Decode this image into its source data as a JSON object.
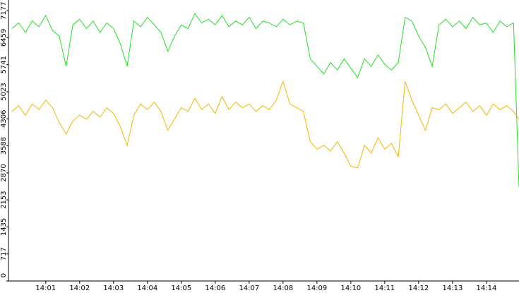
{
  "chart_data": {
    "type": "line",
    "x": [
      0,
      0.2,
      0.4,
      0.6,
      0.8,
      1,
      1.2,
      1.4,
      1.6,
      1.8,
      2,
      2.2,
      2.4,
      2.6,
      2.8,
      3,
      3.2,
      3.4,
      3.6,
      3.8,
      4,
      4.2,
      4.4,
      4.6,
      4.8,
      5,
      5.2,
      5.4,
      5.6,
      5.8,
      6,
      6.2,
      6.4,
      6.6,
      6.8,
      7,
      7.2,
      7.4,
      7.6,
      7.8,
      8,
      8.2,
      8.4,
      8.6,
      8.8,
      9,
      9.2,
      9.4,
      9.6,
      9.8,
      10,
      10.2,
      10.4,
      10.6,
      10.8,
      11,
      11.2,
      11.4,
      11.6,
      11.8,
      12,
      12.2,
      12.4,
      12.6,
      12.8,
      13,
      13.2,
      13.4,
      13.6,
      13.8,
      14,
      14.2,
      14.4,
      14.6,
      14.8,
      14.96
    ],
    "series": [
      {
        "color": "#22e022",
        "values": [
          6700,
          6850,
          6600,
          6900,
          6750,
          7050,
          6650,
          6500,
          5700,
          6800,
          6950,
          6700,
          6900,
          6600,
          6850,
          6700,
          6300,
          5700,
          6900,
          6750,
          7000,
          6800,
          6600,
          6100,
          6500,
          6800,
          6700,
          7100,
          6850,
          6950,
          6800,
          7050,
          6750,
          6900,
          6800,
          7000,
          6700,
          6900,
          6850,
          6750,
          6950,
          6800,
          6900,
          6850,
          5900,
          5700,
          5500,
          5800,
          5600,
          5900,
          5650,
          5400,
          5900,
          5700,
          6000,
          5750,
          5600,
          5800,
          7000,
          6900,
          6500,
          6200,
          5700,
          6800,
          6950,
          6750,
          6900,
          6700,
          7000,
          6800,
          6850,
          6600,
          6900,
          6750,
          6850,
          2500
        ]
      },
      {
        "color": "#f0b800",
        "values": [
          4500,
          4650,
          4400,
          4700,
          4550,
          4800,
          4600,
          4200,
          3900,
          4250,
          4400,
          4300,
          4500,
          4350,
          4600,
          4450,
          4100,
          3600,
          4400,
          4700,
          4550,
          4750,
          4500,
          4000,
          4300,
          4600,
          4500,
          4850,
          4550,
          4700,
          4450,
          4900,
          4550,
          4750,
          4600,
          4700,
          4500,
          4650,
          4550,
          4800,
          5300,
          4700,
          4600,
          4500,
          3700,
          3500,
          3600,
          3450,
          3700,
          3400,
          3050,
          3000,
          3600,
          3400,
          3800,
          3500,
          3650,
          3300,
          5300,
          4800,
          4400,
          4000,
          4600,
          4550,
          4700,
          4450,
          4600,
          4750,
          4500,
          4650,
          4400,
          4700,
          4550,
          4650,
          4500,
          4300
        ]
      }
    ],
    "xlim": [
      -0.1,
      14.96
    ],
    "xticks": [
      {
        "value": 1,
        "label": "14:01"
      },
      {
        "value": 2,
        "label": "14:02"
      },
      {
        "value": 3,
        "label": "14:03"
      },
      {
        "value": 4,
        "label": "14:04"
      },
      {
        "value": 5,
        "label": "14:05"
      },
      {
        "value": 6,
        "label": "14:06"
      },
      {
        "value": 7,
        "label": "14:07"
      },
      {
        "value": 8,
        "label": "14:08"
      },
      {
        "value": 9,
        "label": "14:09"
      },
      {
        "value": 10,
        "label": "14:10"
      },
      {
        "value": 11,
        "label": "14:11"
      },
      {
        "value": 12,
        "label": "14:12"
      },
      {
        "value": 13,
        "label": "14:13"
      },
      {
        "value": 14,
        "label": "14:14"
      }
    ],
    "ylim": [
      0,
      7460
    ],
    "yticks": [
      0,
      717,
      1435,
      2153,
      2870,
      3588,
      4306,
      5023,
      5741,
      6459,
      7177
    ]
  }
}
